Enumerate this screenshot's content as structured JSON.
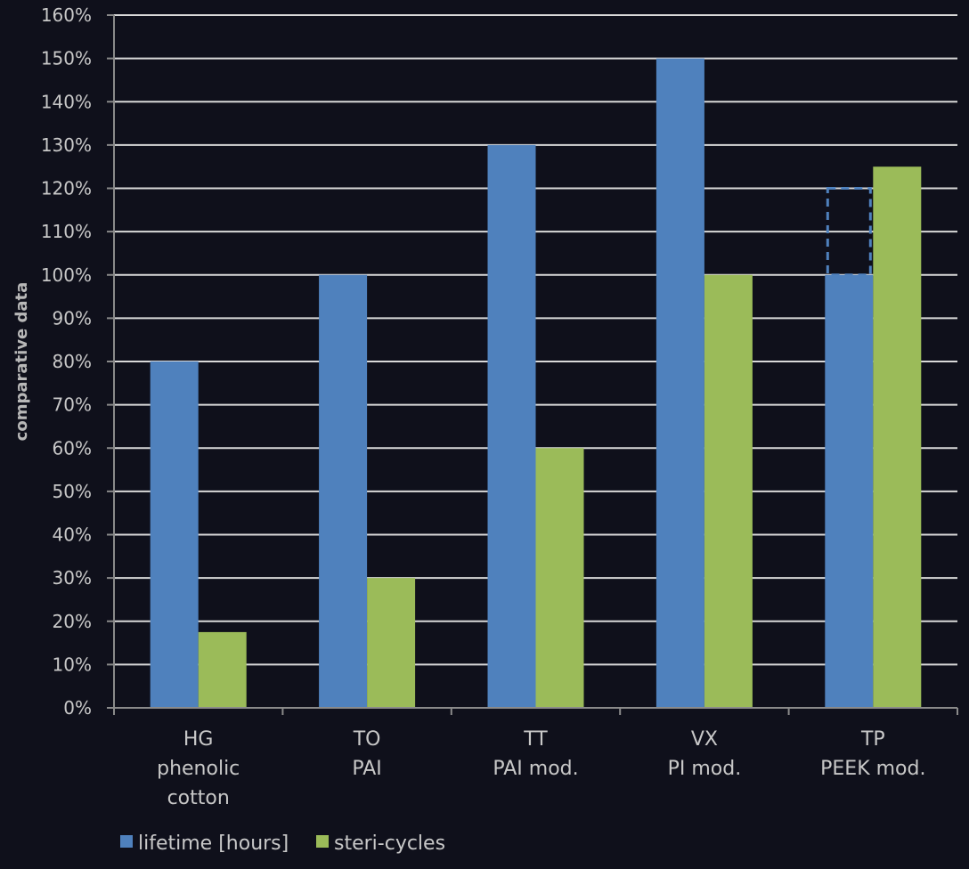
{
  "chart_data": {
    "type": "bar",
    "title": "",
    "xlabel": "",
    "ylabel": "comparative data",
    "ylim": [
      0,
      160
    ],
    "ytick_step": 10,
    "ytick_suffix": "%",
    "grid": true,
    "legend_position": "bottom-left",
    "categories": [
      [
        "HG",
        "phenolic",
        "cotton"
      ],
      [
        "TO",
        "PAI"
      ],
      [
        "TT",
        "PAI mod."
      ],
      [
        "VX",
        "PI mod."
      ],
      [
        "TP",
        "PEEK mod."
      ]
    ],
    "series": [
      {
        "name": "lifetime [hours]",
        "color": "#4f81bd",
        "values": [
          80,
          100,
          130,
          150,
          100
        ]
      },
      {
        "name": "steri-cycles",
        "color": "#9bbb59",
        "values": [
          17.5,
          30,
          60,
          100,
          125
        ]
      }
    ],
    "annotations": [
      {
        "type": "dashed-extension",
        "series": 0,
        "category": 4,
        "from": 100,
        "to": 120,
        "color": "#4f81bd"
      }
    ],
    "colors": {
      "background": "#0f101b",
      "grid": "#d9d9d9",
      "axis": "#8a8a8a",
      "text": "#c8c8c8"
    }
  }
}
